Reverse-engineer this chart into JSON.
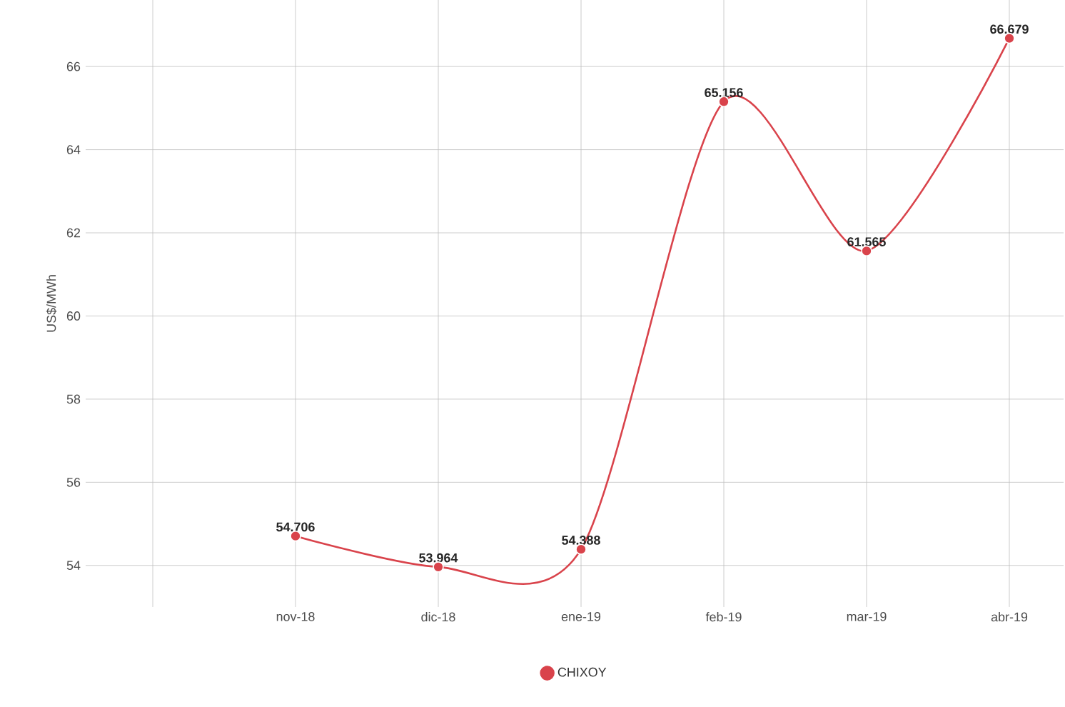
{
  "chart_data": {
    "type": "line",
    "ylabel": "US$/MWh",
    "categories": [
      null,
      "nov-18",
      "dic-18",
      "ene-19",
      "feb-19",
      "mar-19",
      "abr-19"
    ],
    "series": [
      {
        "name": "CHIXOY",
        "color": "#d9434b",
        "values": [
          null,
          54.706,
          53.964,
          54.388,
          65.156,
          61.565,
          66.679
        ]
      }
    ],
    "ylim": [
      53,
      67.6
    ],
    "yticks": [
      54,
      56,
      58,
      60,
      62,
      64,
      66
    ],
    "grid": true,
    "legend": "bottom",
    "marker": "circle",
    "data_labels": true
  }
}
